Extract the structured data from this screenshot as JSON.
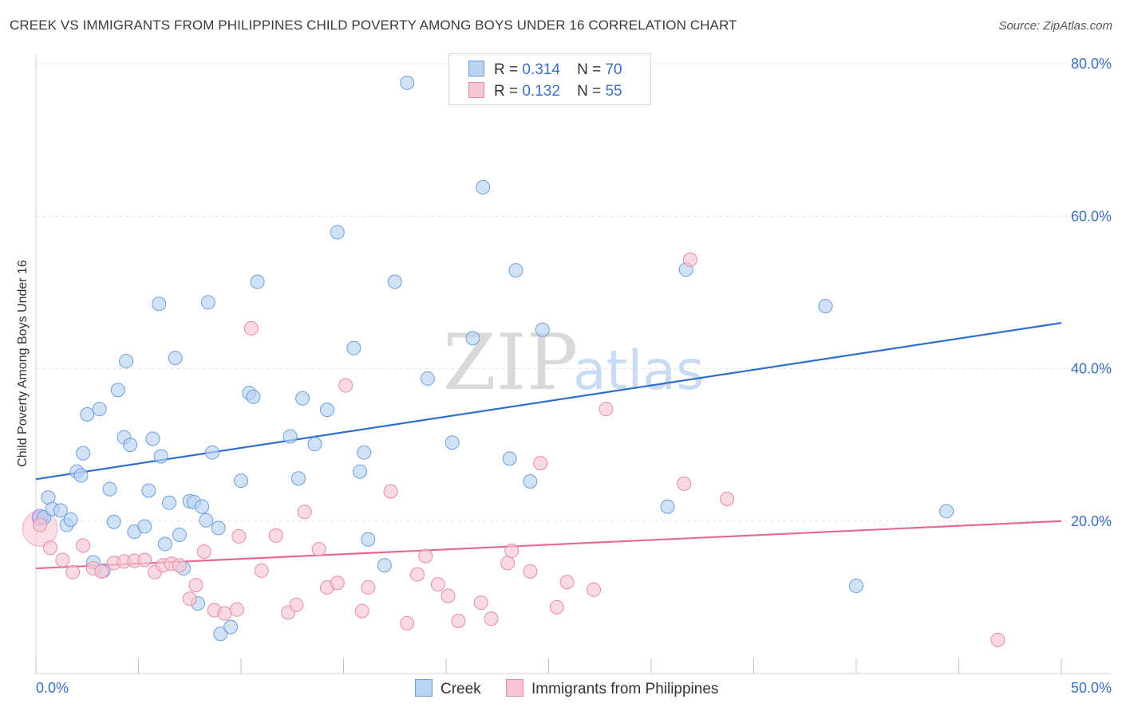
{
  "title": "CREEK VS IMMIGRANTS FROM PHILIPPINES CHILD POVERTY AMONG BOYS UNDER 16 CORRELATION CHART",
  "source": "Source: ZipAtlas.com",
  "watermark": {
    "zip": "ZIP",
    "atlas": "atlas"
  },
  "legend": {
    "r_label": "R =",
    "n_label": "N =",
    "creek": {
      "r": "0.314",
      "n": "70"
    },
    "philippines": {
      "r": "0.132",
      "n": "55"
    }
  },
  "colors": {
    "creek_fill": "#b9d3f3",
    "creek_stroke": "#6c9fdd",
    "creek_line": "#2f6fce",
    "ph_fill": "#f8c6d3",
    "ph_stroke": "#e88aa6",
    "ph_line": "#e66a93",
    "tick_text": "#3a6fc4",
    "grid": "#e0e0e0"
  },
  "chart_data": {
    "type": "scatter",
    "title": "CREEK VS IMMIGRANTS FROM PHILIPPINES CHILD POVERTY AMONG BOYS UNDER 16 CORRELATION CHART",
    "xlabel": "",
    "ylabel": "Child Poverty Among Boys Under 16",
    "xlim": [
      0,
      50
    ],
    "ylim": [
      0,
      80
    ],
    "x_tick_labels": [
      "0.0%",
      "50.0%"
    ],
    "y_ticks": [
      20,
      40,
      60,
      80
    ],
    "y_tick_labels": [
      "20.0%",
      "40.0%",
      "60.0%",
      "80.0%"
    ],
    "grid": true,
    "legend_position": "top-center",
    "series": [
      {
        "name": "Creek",
        "trend": {
          "x": [
            0,
            50
          ],
          "y": [
            25.5,
            46.0
          ]
        },
        "points": [
          [
            0.4,
            20.5
          ],
          [
            0.6,
            23.1
          ],
          [
            0.8,
            21.6
          ],
          [
            1.2,
            21.4
          ],
          [
            1.5,
            19.5
          ],
          [
            1.7,
            20.2
          ],
          [
            2.0,
            26.5
          ],
          [
            2.2,
            26.0
          ],
          [
            2.3,
            28.9
          ],
          [
            2.5,
            34.0
          ],
          [
            3.1,
            34.7
          ],
          [
            2.8,
            14.6
          ],
          [
            3.3,
            13.5
          ],
          [
            3.6,
            24.2
          ],
          [
            3.8,
            19.9
          ],
          [
            4.0,
            37.2
          ],
          [
            4.3,
            31.0
          ],
          [
            4.4,
            41.0
          ],
          [
            4.6,
            30.0
          ],
          [
            4.8,
            18.6
          ],
          [
            5.3,
            19.3
          ],
          [
            5.5,
            24.0
          ],
          [
            5.7,
            30.8
          ],
          [
            6.0,
            48.5
          ],
          [
            6.1,
            28.5
          ],
          [
            6.3,
            17.0
          ],
          [
            6.5,
            22.4
          ],
          [
            6.8,
            41.4
          ],
          [
            7.0,
            18.2
          ],
          [
            7.2,
            13.8
          ],
          [
            7.5,
            22.6
          ],
          [
            7.7,
            22.5
          ],
          [
            8.1,
            21.9
          ],
          [
            8.3,
            20.1
          ],
          [
            8.4,
            48.7
          ],
          [
            8.6,
            29.0
          ],
          [
            8.9,
            19.1
          ],
          [
            9.0,
            5.2
          ],
          [
            9.5,
            6.1
          ],
          [
            10.0,
            25.3
          ],
          [
            10.4,
            36.8
          ],
          [
            10.6,
            36.3
          ],
          [
            10.8,
            51.4
          ],
          [
            12.4,
            31.1
          ],
          [
            12.8,
            25.6
          ],
          [
            13.0,
            36.1
          ],
          [
            13.6,
            30.1
          ],
          [
            14.2,
            34.6
          ],
          [
            14.7,
            57.9
          ],
          [
            15.5,
            42.7
          ],
          [
            15.8,
            26.5
          ],
          [
            16.0,
            29.0
          ],
          [
            16.2,
            17.6
          ],
          [
            17.5,
            51.4
          ],
          [
            18.1,
            77.5
          ],
          [
            19.1,
            38.7
          ],
          [
            20.3,
            30.3
          ],
          [
            21.3,
            44.0
          ],
          [
            21.8,
            63.8
          ],
          [
            23.1,
            28.2
          ],
          [
            23.4,
            52.9
          ],
          [
            24.1,
            25.2
          ],
          [
            24.7,
            45.1
          ],
          [
            30.8,
            21.9
          ],
          [
            31.7,
            53.0
          ],
          [
            38.5,
            48.2
          ],
          [
            40.0,
            11.5
          ],
          [
            44.4,
            21.3
          ],
          [
            17.0,
            14.2
          ],
          [
            7.9,
            9.2
          ]
        ]
      },
      {
        "name": "Immigrants from Philippines",
        "trend": {
          "x": [
            0,
            50
          ],
          "y": [
            13.8,
            20.0
          ]
        },
        "points": [
          [
            0.2,
            19.5
          ],
          [
            0.7,
            16.5
          ],
          [
            1.3,
            14.9
          ],
          [
            1.8,
            13.3
          ],
          [
            2.3,
            16.8
          ],
          [
            2.8,
            13.8
          ],
          [
            3.2,
            13.4
          ],
          [
            3.8,
            14.5
          ],
          [
            4.3,
            14.7
          ],
          [
            4.8,
            14.8
          ],
          [
            5.3,
            14.9
          ],
          [
            5.8,
            13.3
          ],
          [
            6.2,
            14.2
          ],
          [
            6.6,
            14.4
          ],
          [
            7.0,
            14.2
          ],
          [
            7.5,
            9.8
          ],
          [
            7.8,
            11.6
          ],
          [
            8.2,
            16.0
          ],
          [
            8.7,
            8.3
          ],
          [
            9.2,
            7.9
          ],
          [
            9.8,
            8.4
          ],
          [
            9.9,
            18.0
          ],
          [
            10.5,
            45.3
          ],
          [
            11.0,
            13.5
          ],
          [
            11.7,
            18.1
          ],
          [
            12.3,
            8.0
          ],
          [
            12.7,
            9.0
          ],
          [
            13.1,
            21.2
          ],
          [
            13.8,
            16.3
          ],
          [
            14.2,
            11.3
          ],
          [
            14.7,
            11.9
          ],
          [
            15.1,
            37.8
          ],
          [
            15.9,
            8.2
          ],
          [
            16.2,
            11.3
          ],
          [
            17.3,
            23.9
          ],
          [
            18.1,
            6.6
          ],
          [
            18.6,
            13.0
          ],
          [
            19.0,
            15.4
          ],
          [
            19.6,
            11.7
          ],
          [
            20.1,
            10.2
          ],
          [
            20.6,
            6.9
          ],
          [
            21.7,
            9.3
          ],
          [
            22.2,
            7.2
          ],
          [
            23.0,
            14.5
          ],
          [
            23.2,
            16.1
          ],
          [
            24.1,
            13.4
          ],
          [
            24.6,
            27.6
          ],
          [
            25.4,
            8.7
          ],
          [
            25.9,
            12.0
          ],
          [
            27.2,
            11.0
          ],
          [
            27.8,
            34.7
          ],
          [
            31.6,
            24.9
          ],
          [
            31.9,
            54.3
          ],
          [
            33.7,
            22.9
          ],
          [
            46.9,
            4.4
          ]
        ]
      }
    ]
  }
}
